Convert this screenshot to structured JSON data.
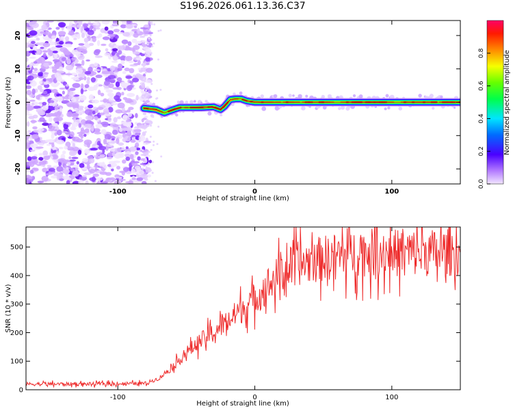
{
  "figure": {
    "title": "S196.2026.061.13.36.C37"
  },
  "chart_data": [
    {
      "type": "heatmap",
      "xlabel": "Height of straight line (km)",
      "ylabel": "Frequency (Hz)",
      "xlim": [
        -167,
        150
      ],
      "ylim": [
        -24.5,
        24.5
      ],
      "xticks": [
        -100,
        0,
        100
      ],
      "yticks": [
        -20,
        -10,
        0,
        10,
        20
      ],
      "xtick_labels": [
        "-100",
        "0",
        "100"
      ],
      "ytick_labels": [
        "-20",
        "-10",
        "0",
        "10",
        "20"
      ],
      "noise_region_x": [
        -167,
        -80
      ],
      "signal_ridge": {
        "x": [
          -81,
          -72,
          -66,
          -60,
          -55,
          -50,
          -40,
          -30,
          -25,
          -22,
          -18,
          -14,
          -10,
          -6,
          -3,
          0,
          10,
          30,
          60,
          90,
          110,
          130,
          150
        ],
        "freq": [
          -1.8,
          -2.2,
          -3.2,
          -2.3,
          -1.6,
          -1.6,
          -1.6,
          -1.4,
          -2.2,
          -1.2,
          0.8,
          1.0,
          1.0,
          0.4,
          0.2,
          0.0,
          0.0,
          0.0,
          0.0,
          0.0,
          0.0,
          0.0,
          0.0
        ]
      },
      "colorbar": {
        "label": "Normalized spectral amplitude",
        "range": [
          0.0,
          1.0
        ],
        "ticks": [
          0.0,
          0.2,
          0.4,
          0.6,
          0.8
        ],
        "tick_labels": [
          "0.0",
          "0.2",
          "0.4",
          "0.6",
          "0.8"
        ]
      }
    },
    {
      "type": "line",
      "xlabel": "Height of straight line (km)",
      "ylabel": "SNR (10 * v/v)",
      "xlim": [
        -167,
        150
      ],
      "ylim": [
        0,
        570
      ],
      "xticks": [
        -100,
        0,
        100
      ],
      "yticks": [
        0,
        100,
        200,
        300,
        400,
        500
      ],
      "xtick_labels": [
        "-100",
        "0",
        "100"
      ],
      "ytick_labels": [
        "0",
        "100",
        "200",
        "300",
        "400",
        "500"
      ],
      "series": [
        {
          "name": "SNR",
          "color": "#ee2a2a",
          "trend_x": [
            -167,
            -120,
            -80,
            -70,
            -60,
            -50,
            -40,
            -30,
            -20,
            -10,
            0,
            10,
            20,
            30,
            50,
            70,
            90,
            110,
            130,
            150
          ],
          "trend_y": [
            20,
            20,
            22,
            40,
            80,
            130,
            170,
            200,
            240,
            280,
            320,
            370,
            410,
            440,
            460,
            480,
            480,
            480,
            480,
            480
          ]
        }
      ]
    }
  ]
}
